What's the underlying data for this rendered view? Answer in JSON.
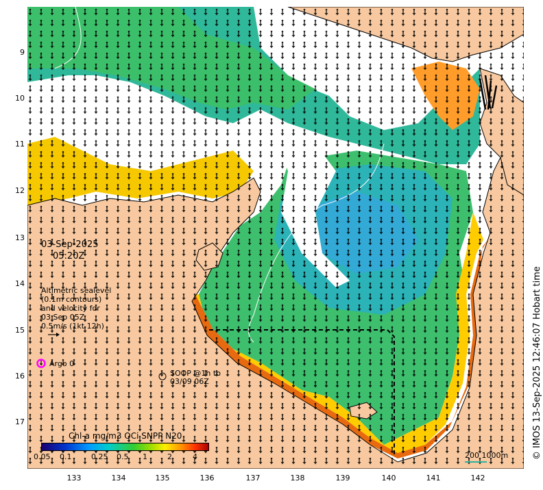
{
  "map": {
    "ocean_color": "#2bb3a0",
    "land_color": "#f8c9a0",
    "coast_color": "#000000",
    "lat_ticks": [
      "9",
      "10",
      "11",
      "12",
      "13",
      "14",
      "15",
      "16",
      "17"
    ],
    "lon_ticks": [
      "133",
      "134",
      "135",
      "136",
      "137",
      "138",
      "139",
      "140",
      "141",
      "142"
    ]
  },
  "info": {
    "date": "03-Sep-2025",
    "time": "05:20Z",
    "altimetry": [
      "Altimetric sealevel",
      "(0.1m contours)",
      "and velocity for",
      "03 Sep 05Z",
      "0.5m/s (1kt 12h)"
    ]
  },
  "argo": {
    "label": "Argo 0",
    "color": "#ff00ff"
  },
  "soop": {
    "line1": "SOOP @1h to",
    "line2": "03/09 06Z"
  },
  "colorbar": {
    "title": "Chl-a mg/m3 OCi SNPP N20",
    "ticks": [
      "0.05",
      "0.1",
      "0.25",
      "0.5",
      "1",
      "2",
      "4"
    ],
    "colors": [
      "#1a0070",
      "#0033cc",
      "#0099ff",
      "#00cccc",
      "#33cc33",
      "#99dd00",
      "#ffee00",
      "#ff9900",
      "#ff3300",
      "#aa0000"
    ]
  },
  "scale": {
    "label": "200  1000m"
  },
  "credit": "© IMOS 13-Sep-2025 12:46:07 Hobart time"
}
